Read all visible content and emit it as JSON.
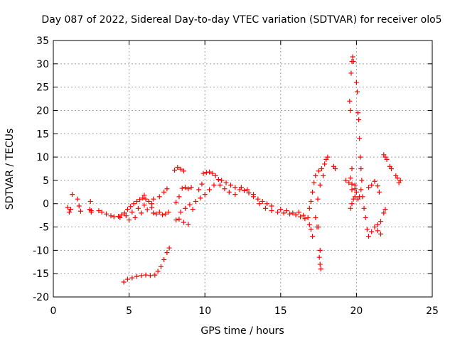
{
  "chart_data": {
    "type": "scatter",
    "title": "Day 087 of 2022, Sidereal Day-to-day VTEC variation (SDTVAR) for receiver olo5",
    "xlabel": "GPS time / hours",
    "ylabel": "SDTVAR / TECUs",
    "xlim": [
      0,
      25
    ],
    "ylim": [
      -20,
      35
    ],
    "xticks": [
      0,
      5,
      10,
      15,
      20,
      25
    ],
    "yticks": [
      -20,
      -15,
      -10,
      -5,
      0,
      5,
      10,
      15,
      20,
      25,
      30,
      35
    ],
    "grid": true,
    "marker": "+",
    "color": "#ff0000",
    "series": [
      {
        "name": "SDTVAR",
        "points": [
          [
            0.95,
            -0.8
          ],
          [
            1.05,
            -1.8
          ],
          [
            1.15,
            -1.2
          ],
          [
            1.25,
            2.0
          ],
          [
            1.6,
            1.0
          ],
          [
            1.7,
            -0.5
          ],
          [
            1.8,
            -1.6
          ],
          [
            2.4,
            -1.2
          ],
          [
            2.45,
            0.5
          ],
          [
            2.5,
            -1.8
          ],
          [
            2.5,
            -1.5
          ],
          [
            3.0,
            -1.5
          ],
          [
            3.2,
            -1.8
          ],
          [
            3.5,
            -2.2
          ],
          [
            3.8,
            -2.6
          ],
          [
            4.0,
            -2.8
          ],
          [
            4.3,
            -2.7
          ],
          [
            4.5,
            -2.4
          ],
          [
            4.7,
            -2.0
          ],
          [
            4.9,
            -1.2
          ],
          [
            5.1,
            -0.6
          ],
          [
            5.3,
            0.0
          ],
          [
            5.5,
            0.5
          ],
          [
            5.7,
            0.9
          ],
          [
            5.9,
            1.2
          ],
          [
            6.1,
            1.0
          ],
          [
            6.3,
            0.5
          ],
          [
            6.5,
            0.0
          ],
          [
            4.4,
            -3.0
          ],
          [
            4.8,
            -2.6
          ],
          [
            5.2,
            -1.8
          ],
          [
            5.6,
            -1.0
          ],
          [
            6.0,
            -0.3
          ],
          [
            6.5,
            -0.8
          ],
          [
            7.0,
            -1.8
          ],
          [
            7.4,
            -2.2
          ],
          [
            7.6,
            -1.8
          ],
          [
            5.0,
            -3.5
          ],
          [
            5.4,
            -3.0
          ],
          [
            5.8,
            -2.0
          ],
          [
            6.2,
            -1.3
          ],
          [
            6.6,
            -2.0
          ],
          [
            6.0,
            1.8
          ],
          [
            6.6,
            1.0
          ],
          [
            7.0,
            1.5
          ],
          [
            7.3,
            2.5
          ],
          [
            7.5,
            3.2
          ],
          [
            6.8,
            -2.2
          ],
          [
            7.2,
            -2.4
          ],
          [
            4.65,
            -16.8
          ],
          [
            4.9,
            -16.2
          ],
          [
            5.2,
            -15.9
          ],
          [
            5.5,
            -15.6
          ],
          [
            5.8,
            -15.4
          ],
          [
            6.1,
            -15.3
          ],
          [
            6.4,
            -15.4
          ],
          [
            6.7,
            -15.3
          ],
          [
            6.9,
            -14.5
          ],
          [
            7.1,
            -13.5
          ],
          [
            7.3,
            -12.0
          ],
          [
            7.5,
            -10.5
          ],
          [
            7.65,
            -9.5
          ],
          [
            8.0,
            7.2
          ],
          [
            8.2,
            7.8
          ],
          [
            8.4,
            7.4
          ],
          [
            8.6,
            7.0
          ],
          [
            8.1,
            0.3
          ],
          [
            8.3,
            1.5
          ],
          [
            8.5,
            3.3
          ],
          [
            8.7,
            3.5
          ],
          [
            8.9,
            3.2
          ],
          [
            9.1,
            3.5
          ],
          [
            8.1,
            -3.5
          ],
          [
            8.3,
            -3.3
          ],
          [
            8.6,
            -4.0
          ],
          [
            8.9,
            -4.4
          ],
          [
            8.4,
            -1.8
          ],
          [
            8.7,
            -1.0
          ],
          [
            9.0,
            -0.2
          ],
          [
            9.2,
            -1.2
          ],
          [
            9.6,
            3.0
          ],
          [
            9.8,
            4.2
          ],
          [
            9.4,
            0.5
          ],
          [
            9.7,
            1.2
          ],
          [
            9.9,
            6.5
          ],
          [
            10.1,
            6.7
          ],
          [
            10.3,
            6.8
          ],
          [
            10.5,
            6.5
          ],
          [
            10.7,
            6.0
          ],
          [
            10.0,
            2.0
          ],
          [
            10.3,
            3.0
          ],
          [
            10.6,
            4.0
          ],
          [
            10.9,
            5.2
          ],
          [
            11.1,
            5.0
          ],
          [
            11.4,
            4.5
          ],
          [
            11.7,
            4.0
          ],
          [
            12.0,
            3.5
          ],
          [
            12.3,
            3.0
          ],
          [
            12.6,
            2.8
          ],
          [
            12.9,
            2.3
          ],
          [
            13.2,
            1.5
          ],
          [
            13.5,
            1.0
          ],
          [
            13.8,
            0.5
          ],
          [
            14.1,
            0.0
          ],
          [
            14.4,
            -0.5
          ],
          [
            11.0,
            4.0
          ],
          [
            11.3,
            3.2
          ],
          [
            11.6,
            2.5
          ],
          [
            12.0,
            2.0
          ],
          [
            12.4,
            3.5
          ],
          [
            12.8,
            3.0
          ],
          [
            13.2,
            2.0
          ],
          [
            13.6,
            0.0
          ],
          [
            14.0,
            -1.0
          ],
          [
            14.4,
            -1.5
          ],
          [
            14.8,
            -1.8
          ],
          [
            15.2,
            -2.0
          ],
          [
            15.6,
            -2.2
          ],
          [
            16.0,
            -2.4
          ],
          [
            16.3,
            -2.8
          ],
          [
            16.6,
            -3.2
          ],
          [
            16.9,
            -4.5
          ],
          [
            17.0,
            -5.5
          ],
          [
            17.1,
            -7.0
          ],
          [
            15.0,
            -1.2
          ],
          [
            15.4,
            -1.5
          ],
          [
            15.8,
            -2.0
          ],
          [
            16.2,
            -1.8
          ],
          [
            16.5,
            -2.5
          ],
          [
            16.8,
            -3.0
          ],
          [
            16.9,
            -1.0
          ],
          [
            17.0,
            0.5
          ],
          [
            17.1,
            2.5
          ],
          [
            17.2,
            4.5
          ],
          [
            17.3,
            6.0
          ],
          [
            17.5,
            7.0
          ],
          [
            17.7,
            7.5
          ],
          [
            17.9,
            8.5
          ],
          [
            18.0,
            9.5
          ],
          [
            18.1,
            10.0
          ],
          [
            17.3,
            -3.0
          ],
          [
            17.4,
            -5.0
          ],
          [
            17.5,
            -5.0
          ],
          [
            17.6,
            -10.0
          ],
          [
            17.55,
            -11.5
          ],
          [
            17.6,
            -13.0
          ],
          [
            17.65,
            -14.0
          ],
          [
            17.45,
            1.0
          ],
          [
            17.6,
            4.0
          ],
          [
            17.8,
            6.0
          ],
          [
            18.6,
            7.5
          ],
          [
            18.5,
            8.0
          ],
          [
            19.3,
            5.0
          ],
          [
            19.5,
            4.5
          ],
          [
            19.6,
            5.5
          ],
          [
            19.7,
            4.2
          ],
          [
            19.7,
            7.5
          ],
          [
            19.7,
            3.0
          ],
          [
            19.55,
            22.0
          ],
          [
            19.6,
            20.0
          ],
          [
            19.65,
            28.0
          ],
          [
            19.7,
            30.5
          ],
          [
            19.75,
            31.5
          ],
          [
            19.8,
            30.5
          ],
          [
            19.6,
            -1.0
          ],
          [
            19.7,
            0.0
          ],
          [
            19.8,
            1.0
          ],
          [
            19.9,
            1.5
          ],
          [
            19.9,
            4.0
          ],
          [
            19.9,
            3.2
          ],
          [
            20.0,
            26.0
          ],
          [
            20.05,
            24.0
          ],
          [
            20.1,
            19.5
          ],
          [
            20.15,
            18.0
          ],
          [
            20.2,
            14.0
          ],
          [
            20.25,
            10.0
          ],
          [
            20.3,
            7.5
          ],
          [
            20.35,
            5.0
          ],
          [
            20.0,
            2.5
          ],
          [
            20.1,
            1.0
          ],
          [
            20.2,
            1.5
          ],
          [
            20.3,
            3.0
          ],
          [
            20.4,
            1.5
          ],
          [
            20.5,
            -1.0
          ],
          [
            20.6,
            -3.0
          ],
          [
            20.7,
            -5.5
          ],
          [
            20.8,
            -7.0
          ],
          [
            21.0,
            -6.0
          ],
          [
            21.2,
            -5.0
          ],
          [
            21.4,
            -4.5
          ],
          [
            21.6,
            -3.8
          ],
          [
            21.8,
            -2.0
          ],
          [
            21.9,
            -1.2
          ],
          [
            20.8,
            3.5
          ],
          [
            21.0,
            4.0
          ],
          [
            21.2,
            4.8
          ],
          [
            21.4,
            3.8
          ],
          [
            21.5,
            2.5
          ],
          [
            21.6,
            -6.5
          ],
          [
            21.4,
            -5.8
          ],
          [
            21.8,
            10.5
          ],
          [
            21.9,
            10.0
          ],
          [
            22.0,
            9.5
          ],
          [
            22.2,
            8.0
          ],
          [
            22.6,
            6.0
          ],
          [
            22.7,
            5.5
          ],
          [
            22.8,
            4.5
          ],
          [
            22.9,
            5.0
          ],
          [
            22.3,
            7.5
          ]
        ]
      }
    ]
  }
}
